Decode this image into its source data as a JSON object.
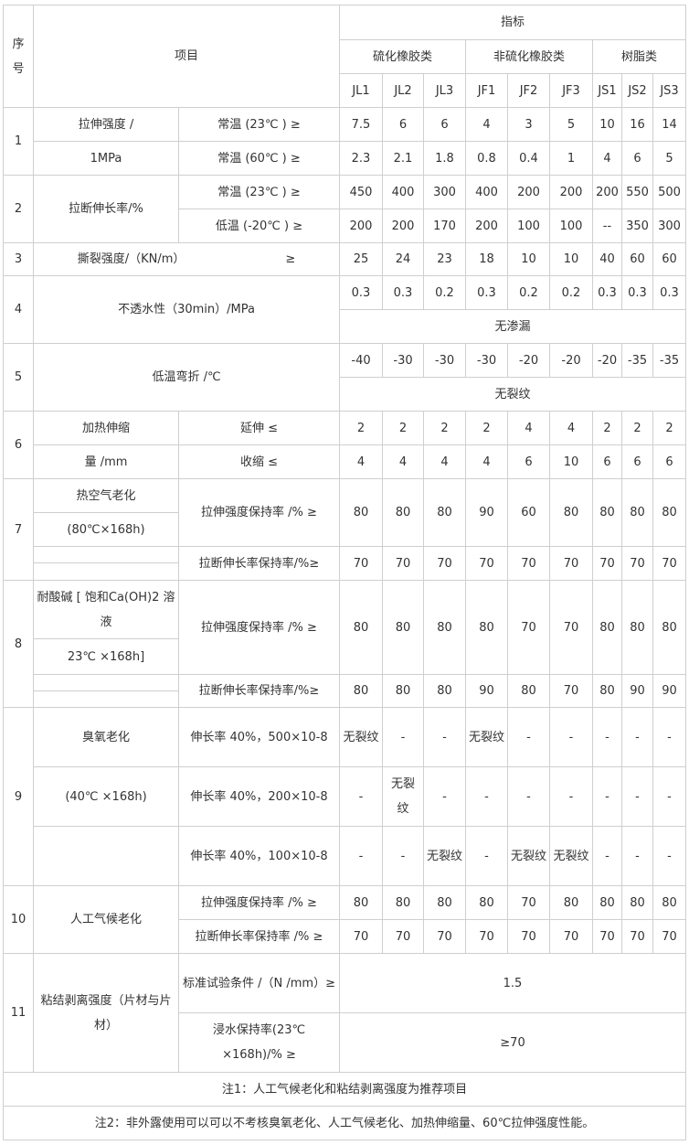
{
  "header": {
    "seq": "序号",
    "item": "项目",
    "indicator": "指标",
    "groups": [
      "硫化橡胶类",
      "非硫化橡胶类",
      "树脂类"
    ],
    "codes": [
      "JL1",
      "JL2",
      "JL3",
      "JF1",
      "JF2",
      "JF3",
      "JS1",
      "JS2",
      "JS3"
    ]
  },
  "rows": {
    "r1": {
      "no": "1",
      "name_a": "拉伸强度 /",
      "name_b": "1MPa",
      "cond": [
        "常温 (23℃ ) ≥",
        "常温 (60℃ ) ≥"
      ],
      "values": [
        [
          "7.5",
          "6",
          "6",
          "4",
          "3",
          "5",
          "10",
          "16",
          "14"
        ],
        [
          "2.3",
          "2.1",
          "1.8",
          "0.8",
          "0.4",
          "1",
          "4",
          "6",
          "5"
        ]
      ]
    },
    "r2": {
      "no": "2",
      "name": "拉断伸长率/%",
      "cond": [
        "常温 (23℃ ) ≥",
        "低温 (-20℃ ) ≥"
      ],
      "values": [
        [
          "450",
          "400",
          "300",
          "400",
          "200",
          "200",
          "200",
          "550",
          "500"
        ],
        [
          "200",
          "200",
          "170",
          "200",
          "100",
          "100",
          "--",
          "350",
          "300"
        ]
      ]
    },
    "r3": {
      "no": "3",
      "name": "撕裂强度/（KN/m）",
      "cond": "≥",
      "values": [
        "25",
        "24",
        "23",
        "18",
        "10",
        "10",
        "40",
        "60",
        "60"
      ]
    },
    "r4": {
      "no": "4",
      "name": "不透水性（30min）/MPa",
      "values": [
        "0.3",
        "0.3",
        "0.2",
        "0.3",
        "0.2",
        "0.2",
        "0.3",
        "0.3",
        "0.3"
      ],
      "note": "无渗漏"
    },
    "r5": {
      "no": "5",
      "name": "低温弯折 /℃",
      "values": [
        "-40",
        "-30",
        "-30",
        "-30",
        "-20",
        "-20",
        "-20",
        "-35",
        "-35"
      ],
      "note": "无裂纹"
    },
    "r6": {
      "no": "6",
      "name_a": "加热伸缩",
      "name_b": "量 /mm",
      "cond": [
        "延伸 ≤",
        "收缩 ≤"
      ],
      "values": [
        [
          "2",
          "2",
          "2",
          "2",
          "4",
          "4",
          "2",
          "2",
          "2"
        ],
        [
          "4",
          "4",
          "4",
          "4",
          "6",
          "10",
          "6",
          "6",
          "6"
        ]
      ]
    },
    "r7": {
      "no": "7",
      "name_a": "热空气老化",
      "name_b": "(80℃×168h)",
      "cond": [
        "拉伸强度保持率 /% ≥",
        "拉断伸长率保持率/%≥"
      ],
      "values": [
        [
          "80",
          "80",
          "80",
          "90",
          "60",
          "80",
          "80",
          "80",
          "80"
        ],
        [
          "70",
          "70",
          "70",
          "70",
          "70",
          "70",
          "70",
          "70",
          "70"
        ]
      ]
    },
    "r8": {
      "no": "8",
      "name_a": "耐酸碱 [ 饱和Ca(OH)2 溶液",
      "name_b": "23℃ ×168h]",
      "cond": [
        "拉伸强度保持率 /% ≥",
        "拉断伸长率保持率/%≥"
      ],
      "values": [
        [
          "80",
          "80",
          "80",
          "80",
          "70",
          "70",
          "80",
          "80",
          "80"
        ],
        [
          "80",
          "80",
          "80",
          "90",
          "80",
          "70",
          "80",
          "90",
          "90"
        ]
      ]
    },
    "r9": {
      "no": "9",
      "name_a": "臭氧老化",
      "name_b": "(40℃ ×168h)",
      "cond": [
        "伸长率 40%，500×10-8",
        "伸长率 40%，200×10-8",
        "伸长率 40%，100×10-8"
      ],
      "values": [
        [
          "无裂纹",
          "-",
          "-",
          "无裂纹",
          "-",
          "-",
          "-",
          "-",
          "-"
        ],
        [
          "-",
          "无裂纹",
          "-",
          "-",
          "-",
          "-",
          "-",
          "-",
          "-"
        ],
        [
          "-",
          "-",
          "无裂纹",
          "-",
          "无裂纹",
          "无裂纹",
          "-",
          "-",
          "-"
        ]
      ]
    },
    "r10": {
      "no": "10",
      "name": "人工气候老化",
      "cond": [
        "拉伸强度保持率 /% ≥",
        "拉断伸长率保持率 /% ≥"
      ],
      "values": [
        [
          "80",
          "80",
          "80",
          "80",
          "70",
          "80",
          "80",
          "80",
          "80"
        ],
        [
          "70",
          "70",
          "70",
          "70",
          "70",
          "70",
          "70",
          "70",
          "70"
        ]
      ]
    },
    "r11": {
      "no": "11",
      "name": "粘结剥离强度（片材与片材）",
      "cond": [
        "标准试验条件 /（N /mm）≥",
        "浸水保持率(23℃ ×168h)/% ≥"
      ],
      "values": [
        "1.5",
        "≥70"
      ]
    }
  },
  "notes": [
    "注1：人工气候老化和粘结剥离强度为推荐项目",
    "注2：非外露使用可以可以不考核臭氧老化、人工气候老化、加热伸缩量、60℃拉伸强度性能。"
  ]
}
